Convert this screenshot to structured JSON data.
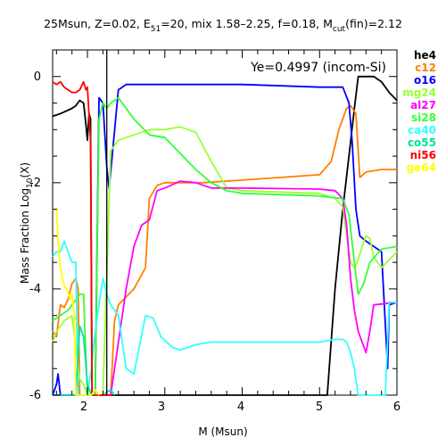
{
  "chart_data": {
    "type": "line",
    "title": {
      "prefix": "25Msun, Z=0.02, E",
      "sub1": "51",
      "middle": "=20, mix 1.58–2.25, f=0.18, M",
      "sub2": "cut",
      "suffix": "(fin)=2.12"
    },
    "xlabel": "M (Msun)",
    "ylabel": {
      "prefix": "Mass Fraction Log",
      "sub": "10",
      "suffix": "(X)"
    },
    "annotation": "Ye=0.4997 (incom-Si)",
    "xlim": [
      1.55,
      6.0
    ],
    "ylim": [
      -6.0,
      0.5
    ],
    "xticks": [
      "2",
      "3",
      "4",
      "5",
      "6"
    ],
    "yticks": [
      "0",
      "-2",
      "-4",
      "-6"
    ],
    "vertical_line_x": 2.25,
    "series": [
      {
        "name": "he4",
        "color": "#000000",
        "points": [
          [
            1.55,
            -0.75
          ],
          [
            1.65,
            -0.7
          ],
          [
            1.8,
            -0.6
          ],
          [
            1.85,
            -0.55
          ],
          [
            1.9,
            -0.45
          ],
          [
            1.95,
            -0.5
          ],
          [
            1.98,
            -0.9
          ],
          [
            2.0,
            -1.2
          ],
          [
            2.02,
            -0.7
          ],
          [
            2.04,
            -0.8
          ],
          [
            2.06,
            -6.0
          ],
          [
            2.2,
            -6.0
          ],
          [
            4.5,
            -6.0
          ],
          [
            5.1,
            -6.0
          ],
          [
            5.2,
            -4.0
          ],
          [
            5.3,
            -2.5
          ],
          [
            5.38,
            -1.5
          ],
          [
            5.45,
            -0.6
          ],
          [
            5.5,
            0.0
          ],
          [
            5.6,
            0.0
          ],
          [
            5.7,
            0.0
          ],
          [
            5.8,
            -0.1
          ],
          [
            5.9,
            -0.3
          ],
          [
            6.0,
            -0.45
          ]
        ]
      },
      {
        "name": "c12",
        "color": "#ff8000",
        "points": [
          [
            1.55,
            -4.8
          ],
          [
            1.6,
            -4.9
          ],
          [
            1.65,
            -4.3
          ],
          [
            1.7,
            -4.35
          ],
          [
            1.75,
            -4.2
          ],
          [
            1.8,
            -3.9
          ],
          [
            1.85,
            -3.8
          ],
          [
            1.88,
            -4.0
          ],
          [
            1.9,
            -6.0
          ],
          [
            2.0,
            -6.0
          ],
          [
            2.1,
            -6.0
          ],
          [
            2.2,
            -6.0
          ],
          [
            2.3,
            -6.0
          ],
          [
            2.35,
            -4.6
          ],
          [
            2.4,
            -4.3
          ],
          [
            2.6,
            -4.0
          ],
          [
            2.75,
            -3.6
          ],
          [
            2.8,
            -2.3
          ],
          [
            2.9,
            -2.05
          ],
          [
            3.0,
            -2.0
          ],
          [
            3.5,
            -2.0
          ],
          [
            4.0,
            -1.95
          ],
          [
            4.5,
            -1.9
          ],
          [
            5.0,
            -1.85
          ],
          [
            5.15,
            -1.6
          ],
          [
            5.25,
            -1.0
          ],
          [
            5.35,
            -0.6
          ],
          [
            5.4,
            -0.55
          ],
          [
            5.47,
            -0.7
          ],
          [
            5.52,
            -1.9
          ],
          [
            5.6,
            -1.8
          ],
          [
            5.8,
            -1.75
          ],
          [
            6.0,
            -1.75
          ]
        ]
      },
      {
        "name": "o16",
        "color": "#0000ff",
        "points": [
          [
            1.55,
            -6.0
          ],
          [
            1.6,
            -5.8
          ],
          [
            1.62,
            -5.6
          ],
          [
            1.65,
            -6.0
          ],
          [
            1.7,
            -6.0
          ],
          [
            2.0,
            -6.0
          ],
          [
            2.1,
            -6.0
          ],
          [
            2.15,
            -0.4
          ],
          [
            2.2,
            -0.5
          ],
          [
            2.25,
            -1.7
          ],
          [
            2.28,
            -2.1
          ],
          [
            2.3,
            -1.8
          ],
          [
            2.4,
            -0.25
          ],
          [
            2.5,
            -0.15
          ],
          [
            3.0,
            -0.15
          ],
          [
            4.0,
            -0.15
          ],
          [
            5.0,
            -0.2
          ],
          [
            5.3,
            -0.2
          ],
          [
            5.38,
            -0.5
          ],
          [
            5.42,
            -1.2
          ],
          [
            5.47,
            -2.5
          ],
          [
            5.52,
            -3.0
          ],
          [
            5.6,
            -3.1
          ],
          [
            5.7,
            -3.2
          ],
          [
            5.8,
            -3.3
          ],
          [
            5.88,
            -5.5
          ],
          [
            5.9,
            -4.3
          ],
          [
            6.0,
            -4.25
          ]
        ]
      },
      {
        "name": "mg24",
        "color": "#99ff33",
        "points": [
          [
            1.55,
            -5.0
          ],
          [
            1.6,
            -4.8
          ],
          [
            1.7,
            -4.6
          ],
          [
            1.8,
            -4.5
          ],
          [
            1.9,
            -5.7
          ],
          [
            1.95,
            -5.8
          ],
          [
            2.0,
            -6.0
          ],
          [
            2.2,
            -6.0
          ],
          [
            2.3,
            -1.4
          ],
          [
            2.4,
            -1.2
          ],
          [
            2.6,
            -1.1
          ],
          [
            2.8,
            -1.0
          ],
          [
            3.0,
            -1.0
          ],
          [
            3.2,
            -0.95
          ],
          [
            3.4,
            -1.05
          ],
          [
            3.6,
            -1.6
          ],
          [
            3.8,
            -2.1
          ],
          [
            4.0,
            -2.15
          ],
          [
            5.0,
            -2.2
          ],
          [
            5.2,
            -2.3
          ],
          [
            5.3,
            -2.45
          ],
          [
            5.35,
            -3.0
          ],
          [
            5.4,
            -3.5
          ],
          [
            5.45,
            -3.6
          ],
          [
            5.5,
            -3.45
          ],
          [
            5.55,
            -3.2
          ],
          [
            5.6,
            -3.0
          ],
          [
            5.65,
            -3.05
          ],
          [
            5.7,
            -3.4
          ],
          [
            5.8,
            -3.6
          ],
          [
            6.0,
            -3.3
          ]
        ]
      },
      {
        "name": "al27",
        "color": "#ff00ff",
        "points": [
          [
            1.55,
            -6.0
          ],
          [
            2.3,
            -6.0
          ],
          [
            2.5,
            -4.0
          ],
          [
            2.6,
            -3.2
          ],
          [
            2.7,
            -2.8
          ],
          [
            2.8,
            -2.7
          ],
          [
            2.9,
            -2.15
          ],
          [
            3.0,
            -2.1
          ],
          [
            3.2,
            -1.97
          ],
          [
            3.4,
            -2.0
          ],
          [
            3.6,
            -2.1
          ],
          [
            4.0,
            -2.1
          ],
          [
            5.0,
            -2.12
          ],
          [
            5.2,
            -2.15
          ],
          [
            5.3,
            -2.3
          ],
          [
            5.35,
            -2.8
          ],
          [
            5.4,
            -3.8
          ],
          [
            5.45,
            -4.4
          ],
          [
            5.5,
            -4.8
          ],
          [
            5.55,
            -5.0
          ],
          [
            5.6,
            -5.2
          ],
          [
            5.65,
            -4.8
          ],
          [
            5.7,
            -4.3
          ],
          [
            6.0,
            -4.25
          ]
        ]
      },
      {
        "name": "si28",
        "color": "#33ff33",
        "points": [
          [
            1.55,
            -4.6
          ],
          [
            1.65,
            -4.5
          ],
          [
            1.75,
            -4.4
          ],
          [
            1.85,
            -4.2
          ],
          [
            1.9,
            -4.1
          ],
          [
            1.95,
            -4.1
          ],
          [
            2.0,
            -6.0
          ],
          [
            2.1,
            -6.0
          ],
          [
            2.15,
            -0.8
          ],
          [
            2.2,
            -0.5
          ],
          [
            2.25,
            -0.6
          ],
          [
            2.3,
            -0.5
          ],
          [
            2.4,
            -0.4
          ],
          [
            2.5,
            -0.6
          ],
          [
            2.6,
            -0.8
          ],
          [
            2.8,
            -1.1
          ],
          [
            3.0,
            -1.15
          ],
          [
            3.2,
            -1.45
          ],
          [
            3.4,
            -1.75
          ],
          [
            3.6,
            -2.0
          ],
          [
            3.8,
            -2.15
          ],
          [
            4.0,
            -2.2
          ],
          [
            5.0,
            -2.25
          ],
          [
            5.3,
            -2.3
          ],
          [
            5.38,
            -2.6
          ],
          [
            5.45,
            -3.5
          ],
          [
            5.5,
            -4.1
          ],
          [
            5.57,
            -3.9
          ],
          [
            5.65,
            -3.5
          ],
          [
            5.8,
            -3.25
          ],
          [
            6.0,
            -3.2
          ]
        ]
      },
      {
        "name": "ca40",
        "color": "#33ffff",
        "points": [
          [
            1.55,
            -3.4
          ],
          [
            1.6,
            -3.3
          ],
          [
            1.65,
            -3.3
          ],
          [
            1.7,
            -3.1
          ],
          [
            1.75,
            -3.3
          ],
          [
            1.8,
            -3.5
          ],
          [
            1.85,
            -3.5
          ],
          [
            1.88,
            -6.0
          ],
          [
            2.0,
            -6.0
          ],
          [
            2.05,
            -5.5
          ],
          [
            2.1,
            -4.8
          ],
          [
            2.15,
            -4.3
          ],
          [
            2.2,
            -3.8
          ],
          [
            2.25,
            -4.1
          ],
          [
            2.3,
            -4.3
          ],
          [
            2.4,
            -4.5
          ],
          [
            2.5,
            -5.5
          ],
          [
            2.6,
            -5.6
          ],
          [
            2.75,
            -4.5
          ],
          [
            2.85,
            -4.55
          ],
          [
            2.95,
            -4.9
          ],
          [
            3.1,
            -5.1
          ],
          [
            3.2,
            -5.15
          ],
          [
            3.4,
            -5.05
          ],
          [
            3.6,
            -5.0
          ],
          [
            4.0,
            -5.0
          ],
          [
            5.0,
            -5.0
          ],
          [
            5.2,
            -4.95
          ],
          [
            5.3,
            -4.95
          ],
          [
            5.35,
            -5.0
          ],
          [
            5.4,
            -5.2
          ],
          [
            5.45,
            -5.5
          ],
          [
            5.5,
            -6.0
          ],
          [
            5.8,
            -6.0
          ],
          [
            5.85,
            -6.0
          ],
          [
            5.9,
            -4.25
          ],
          [
            6.0,
            -4.25
          ]
        ]
      },
      {
        "name": "co55",
        "color": "#00e1a0",
        "points": [
          [
            1.55,
            -6.0
          ],
          [
            1.65,
            -6.0
          ],
          [
            1.85,
            -6.0
          ],
          [
            1.9,
            -4.7
          ],
          [
            1.95,
            -4.9
          ],
          [
            2.0,
            -5.8
          ],
          [
            2.05,
            -6.0
          ],
          [
            2.2,
            -6.0
          ],
          [
            2.3,
            -5.9
          ],
          [
            2.35,
            -6.0
          ]
        ]
      },
      {
        "name": "ni56",
        "color": "#ff0000",
        "points": [
          [
            1.55,
            -0.1
          ],
          [
            1.6,
            -0.15
          ],
          [
            1.65,
            -0.1
          ],
          [
            1.7,
            -0.2
          ],
          [
            1.75,
            -0.25
          ],
          [
            1.8,
            -0.3
          ],
          [
            1.85,
            -0.3
          ],
          [
            1.9,
            -0.25
          ],
          [
            1.95,
            -0.1
          ],
          [
            1.98,
            -0.25
          ],
          [
            2.0,
            -0.2
          ],
          [
            2.04,
            -1.2
          ],
          [
            2.06,
            -6.0
          ],
          [
            2.3,
            -6.0
          ]
        ]
      },
      {
        "name": "ge64",
        "color": "#ffff00",
        "points": [
          [
            1.55,
            -2.5
          ],
          [
            1.6,
            -2.5
          ],
          [
            1.62,
            -3.1
          ],
          [
            1.65,
            -3.6
          ],
          [
            1.7,
            -3.95
          ],
          [
            1.73,
            -4.0
          ],
          [
            1.78,
            -4.2
          ],
          [
            1.8,
            -4.1
          ],
          [
            1.83,
            -4.5
          ],
          [
            1.85,
            -6.0
          ],
          [
            1.9,
            -6.0
          ],
          [
            2.0,
            -6.0
          ],
          [
            2.05,
            -6.0
          ],
          [
            2.1,
            -5.9
          ],
          [
            2.15,
            -6.0
          ]
        ]
      }
    ]
  }
}
